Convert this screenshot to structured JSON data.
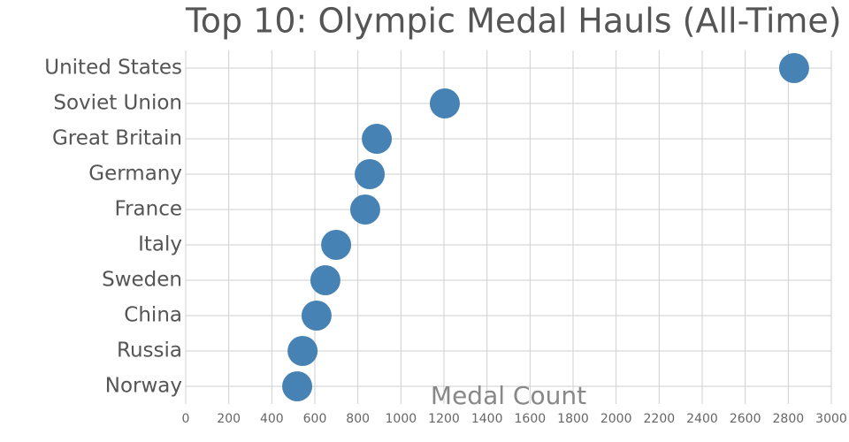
{
  "chart_data": {
    "type": "dot",
    "title": "Top 10: Olympic Medal Hauls (All-Time)",
    "x_label": "Medal Count",
    "categories": [
      "United States",
      "Soviet Union",
      "Great Britain",
      "Germany",
      "France",
      "Italy",
      "Sweden",
      "China",
      "Russia",
      "Norway"
    ],
    "values": [
      2827,
      1204,
      888,
      855,
      834,
      699,
      649,
      608,
      543,
      518
    ],
    "color": "#4682b4",
    "xlim": [
      0,
      3000
    ],
    "xticks": [
      0,
      200,
      400,
      600,
      800,
      1000,
      1200,
      1400,
      1600,
      1800,
      2000,
      2200,
      2400,
      2600,
      2800,
      3000
    ],
    "grid": true
  }
}
